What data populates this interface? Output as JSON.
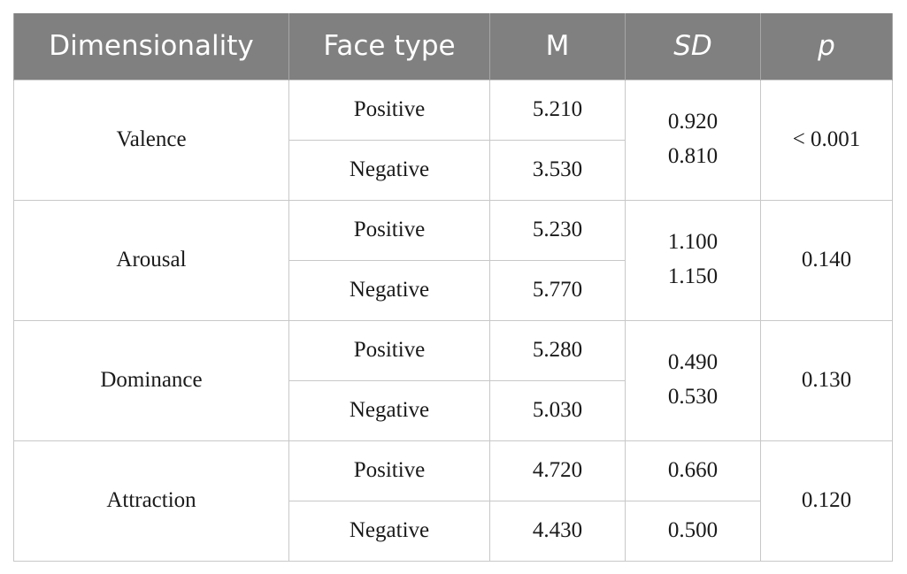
{
  "headers": {
    "dimensionality": "Dimensionality",
    "face_type": "Face type",
    "m": "M",
    "sd": "SD",
    "p": "p"
  },
  "groups": [
    {
      "dimension": "Valence",
      "rows": [
        {
          "face_type": "Positive",
          "m": "5.210"
        },
        {
          "face_type": "Negative",
          "m": "3.530"
        }
      ],
      "sd": [
        "0.920",
        "0.810"
      ],
      "p": "< 0.001"
    },
    {
      "dimension": "Arousal",
      "rows": [
        {
          "face_type": "Positive",
          "m": "5.230"
        },
        {
          "face_type": "Negative",
          "m": "5.770"
        }
      ],
      "sd": [
        "1.100",
        "1.150"
      ],
      "p": "0.140"
    },
    {
      "dimension": "Dominance",
      "rows": [
        {
          "face_type": "Positive",
          "m": "5.280"
        },
        {
          "face_type": "Negative",
          "m": "5.030"
        }
      ],
      "sd": [
        "0.490",
        "0.530"
      ],
      "p": "0.130"
    },
    {
      "dimension": "Attraction",
      "rows": [
        {
          "face_type": "Positive",
          "m": "4.720",
          "sd": "0.660"
        },
        {
          "face_type": "Negative",
          "m": "4.430",
          "sd": "0.500"
        }
      ],
      "p": "0.120"
    }
  ],
  "colors": {
    "header_bg": "#808080",
    "header_text": "#ffffff",
    "grid_line": "#c8c8c8"
  }
}
